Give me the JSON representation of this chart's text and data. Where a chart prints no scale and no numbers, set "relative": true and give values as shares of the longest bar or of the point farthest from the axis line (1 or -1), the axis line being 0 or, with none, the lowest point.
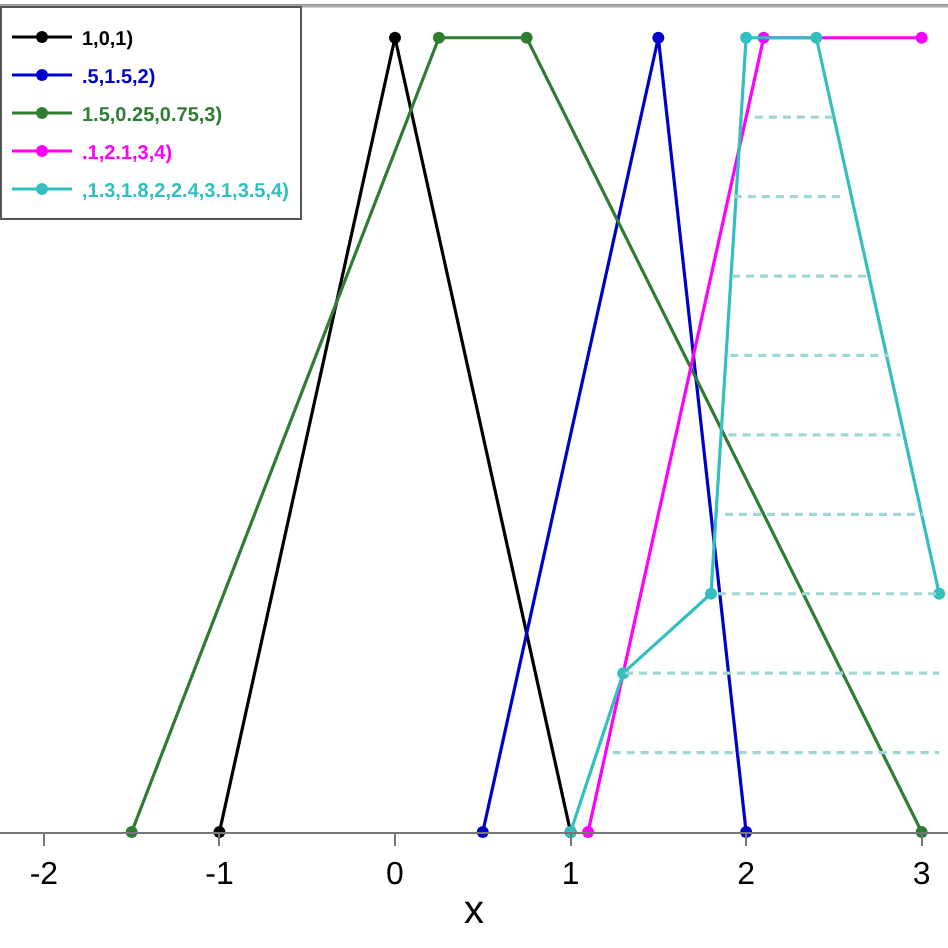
{
  "chart_data": {
    "type": "line",
    "xlabel": "x",
    "relative": true,
    "xlim": [
      -2.25,
      3.15
    ],
    "xticks": [
      -2,
      -1,
      0,
      1,
      2,
      3
    ],
    "legend": "top left",
    "marker": "circle",
    "series": [
      {
        "name": "1,0,1)",
        "color": "#000000",
        "x": [
          -1,
          0,
          1
        ],
        "values": [
          0,
          1,
          0
        ]
      },
      {
        "name": ".5,1.5,2)",
        "color": "#0000cc",
        "x": [
          0.5,
          1.5,
          2
        ],
        "values": [
          0,
          1,
          0
        ]
      },
      {
        "name": "1.5,0.25,0.75,3)",
        "color": "#2e7d32",
        "x": [
          -1.5,
          0.25,
          0.75,
          3
        ],
        "values": [
          0,
          1,
          1,
          0
        ]
      },
      {
        "name": ".1,2.1,3,4)",
        "color": "#ff00ff",
        "x": [
          1.1,
          2.1,
          3
        ],
        "values": [
          0,
          1,
          1
        ]
      },
      {
        "name": ",1.3,1.8,2,2.4,3.1,3.5,4)",
        "color": "#33bfbf",
        "x": [
          1,
          1.3,
          1.8,
          2,
          2.4,
          3.1
        ],
        "values": [
          0,
          0.2,
          0.3,
          1,
          1,
          0.3
        ]
      },
      {
        "color": "#9fd6d6",
        "line_style": "dashed",
        "marker": "none",
        "x": [
          1.24,
          3.1
        ],
        "values": [
          0.1,
          0.1
        ]
      },
      {
        "color": "#9fd6d6",
        "line_style": "dashed",
        "marker": "none",
        "x": [
          1.31,
          3.1
        ],
        "values": [
          0.2,
          0.2
        ]
      },
      {
        "color": "#9fd6d6",
        "line_style": "dashed",
        "marker": "none",
        "x": [
          1.84,
          3.1
        ],
        "values": [
          0.3,
          0.3
        ]
      },
      {
        "color": "#9fd6d6",
        "line_style": "dashed",
        "marker": "none",
        "x": [
          1.88,
          3.01
        ],
        "values": [
          0.4,
          0.4
        ]
      },
      {
        "color": "#9fd6d6",
        "line_style": "dashed",
        "marker": "none",
        "x": [
          1.9,
          2.88
        ],
        "values": [
          0.5,
          0.5
        ]
      },
      {
        "color": "#9fd6d6",
        "line_style": "dashed",
        "marker": "none",
        "x": [
          1.91,
          2.81
        ],
        "values": [
          0.6,
          0.6
        ]
      },
      {
        "color": "#9fd6d6",
        "line_style": "dashed",
        "marker": "none",
        "x": [
          1.92,
          2.69
        ],
        "values": [
          0.7,
          0.7
        ]
      },
      {
        "color": "#9fd6d6",
        "line_style": "dashed",
        "marker": "none",
        "x": [
          1.93,
          2.56
        ],
        "values": [
          0.8,
          0.8
        ]
      },
      {
        "color": "#9fd6d6",
        "line_style": "dashed",
        "marker": "none",
        "x": [
          2.05,
          2.5
        ],
        "values": [
          0.9,
          0.9
        ]
      }
    ]
  }
}
